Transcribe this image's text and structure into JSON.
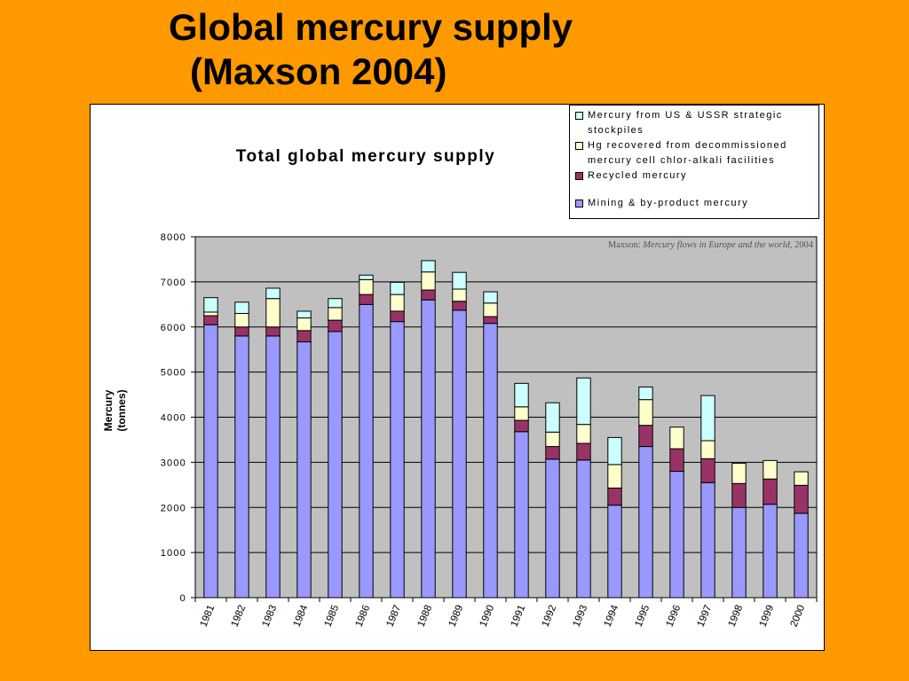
{
  "slide": {
    "title_line1": "Global mercury supply",
    "title_line2": "(Maxson 2004)"
  },
  "attribution": {
    "prefix": "Maxson: ",
    "title": "Mercury flows in Europe and the world,",
    "year": " 2004"
  },
  "chart_data": {
    "type": "bar",
    "stacked": true,
    "title": "Total global mercury supply",
    "xlabel": "",
    "ylabel": "Mercury (tonnes)",
    "ylabel_lines": [
      "Mercury",
      "(tonnes)"
    ],
    "ylim": [
      0,
      8000
    ],
    "yticks": [
      0,
      1000,
      2000,
      3000,
      4000,
      5000,
      6000,
      7000,
      8000
    ],
    "ytick_labels": [
      "0",
      "1000",
      "2000",
      "3000",
      "4000",
      "5000",
      "6000",
      "7000",
      "8000"
    ],
    "grid": true,
    "legend_position": "top-right",
    "categories": [
      "1981",
      "1982",
      "1983",
      "1984",
      "1985",
      "1986",
      "1987",
      "1988",
      "1989",
      "1990",
      "1991",
      "1992",
      "1993",
      "1994",
      "1995",
      "1996",
      "1997",
      "1998",
      "1999",
      "2000"
    ],
    "series": [
      {
        "name": "Mining & by-product mercury",
        "color": "#9999FF",
        "values": [
          6050,
          5800,
          5800,
          5670,
          5900,
          6500,
          6120,
          6600,
          6370,
          6080,
          3680,
          3070,
          3050,
          2050,
          3350,
          2800,
          2550,
          2000,
          2070,
          1870
        ]
      },
      {
        "name": "Recycled mercury",
        "color": "#993366",
        "values": [
          200,
          200,
          200,
          250,
          250,
          220,
          230,
          220,
          200,
          150,
          250,
          280,
          370,
          380,
          470,
          500,
          530,
          530,
          560,
          620
        ]
      },
      {
        "name": "Hg recovered from decommissioned mercury cell chlor-alkali facilities",
        "color": "#FFFFCC",
        "values": [
          80,
          300,
          630,
          280,
          280,
          330,
          370,
          400,
          270,
          300,
          300,
          320,
          420,
          520,
          570,
          480,
          400,
          450,
          410,
          300
        ]
      },
      {
        "name": "Mercury from US & USSR strategic stockpiles",
        "color": "#CCFFFF",
        "values": [
          320,
          250,
          230,
          150,
          200,
          100,
          270,
          250,
          370,
          250,
          520,
          650,
          1030,
          600,
          280,
          0,
          1000,
          0,
          0,
          0
        ]
      }
    ],
    "legend_order": [
      {
        "label_lines": [
          "Mercury from US & USSR strategic",
          "stockpiles"
        ],
        "color": "#CCFFFF"
      },
      {
        "label_lines": [
          "Hg recovered from decommissioned",
          "mercury cell chlor-alkali facilities"
        ],
        "color": "#FFFFCC"
      },
      {
        "label_lines": [
          "Recycled mercury"
        ],
        "color": "#993366"
      },
      {
        "label_lines": [
          "Mining & by-product mercury"
        ],
        "color": "#9999FF"
      }
    ],
    "plot_background": "#C0C0C0"
  }
}
